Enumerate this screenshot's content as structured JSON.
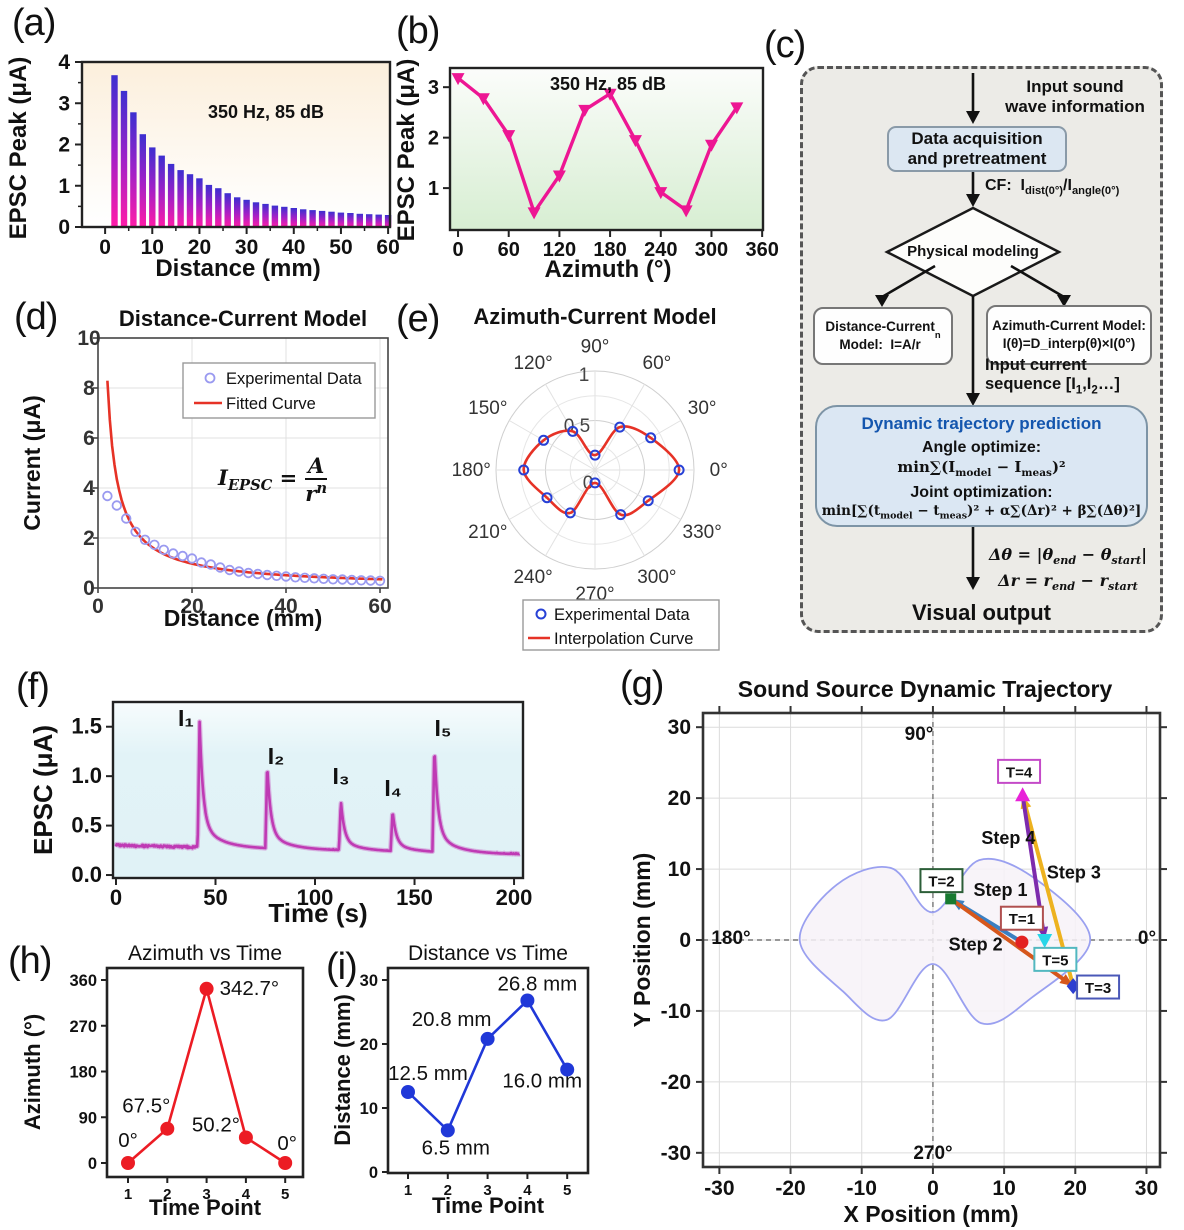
{
  "figure": {
    "panel_labels": {
      "a": "(a)",
      "b": "(b)",
      "c": "(c)",
      "d": "(d)",
      "e": "(e)",
      "f": "(f)",
      "g": "(g)",
      "h": "(h)",
      "i": "(i)"
    }
  },
  "colors": {
    "bar_top": "#3c2fd0",
    "bar_mid": "#9e21c8",
    "bar_bottom": "#ff1ca8",
    "panel_a_bg_top": "#fcefdc",
    "panel_b_bg_bottom": "#d7eed2",
    "panel_f_bg": "#e2f3f7",
    "magenta_line": "#ed1693",
    "orchid_trace": "#bf3ab4",
    "fit_red": "#e63226",
    "exp_circle_d": "#9a9af0",
    "exp_circle_e": "#2741d6",
    "h_red": "#ec1c24",
    "i_blue": "#2038d8",
    "lobe_stroke": "#9aa0f0",
    "lobe_fill": "#f7f2f8"
  },
  "flowchart": {
    "input_html": "Input sound<br>wave information",
    "acquisition_html": "Data acquisition<br>and pretreatment",
    "cf_html": "CF:&nbsp; I<sub>dist(0°)</sub>/I<sub>angle(0°)</sub>",
    "modeling": "Physical modeling",
    "dist_model_html": "Distance-Current<br>Model:&nbsp; I=A/r<sup>n</sup>",
    "azi_model_html": "Azimuth-Current Model:<br>I(θ)=D_interp(θ)×I(0°)",
    "sequence_html": "Input current<br>sequence [I<sub>1</sub>,I<sub>2</sub>…]",
    "dyn_title": "Dynamic trajectory prediction",
    "angle_opt": "Angle optimize:",
    "angle_formula_html": "min∑(I<sub>model</sub> − I<sub>meas</sub>)²",
    "joint_opt": "Joint optimization:",
    "joint_formula_html": "min[∑(t<sub>model</sub> − t<sub>meas</sub>)² + α∑(Δr)² + β∑(Δθ)²]",
    "delta_theta_html": "Δθ = |θ<sub>end</sub> − θ<sub>start</sub>|",
    "delta_r_html": "Δr = r<sub>end</sub> − r<sub>start</sub>",
    "output": "Visual output"
  },
  "panel_d_formula": {
    "lhs_html": "I<sub>EPSC</sub> =",
    "num_html": "A",
    "den_html": "r<sup>n</sup>"
  },
  "chart_data": [
    {
      "id": "a",
      "type": "bar",
      "title": "",
      "xlabel": "Distance (mm)",
      "ylabel": "EPSC Peak (μA)",
      "annotation": "350 Hz, 85 dB",
      "x": [
        2,
        4,
        6,
        8,
        10,
        12,
        14,
        16,
        18,
        20,
        22,
        24,
        26,
        28,
        30,
        32,
        34,
        36,
        38,
        40,
        42,
        44,
        46,
        48,
        50,
        52,
        54,
        56,
        58,
        60
      ],
      "values": [
        3.68,
        3.3,
        2.78,
        2.25,
        1.93,
        1.73,
        1.53,
        1.38,
        1.28,
        1.18,
        1.02,
        0.94,
        0.82,
        0.72,
        0.66,
        0.6,
        0.56,
        0.52,
        0.49,
        0.46,
        0.43,
        0.41,
        0.39,
        0.37,
        0.35,
        0.34,
        0.32,
        0.31,
        0.3,
        0.29
      ],
      "xticks": [
        0,
        10,
        20,
        30,
        40,
        50,
        60
      ],
      "yticks": [
        0,
        1,
        2,
        3,
        4
      ],
      "xlim": [
        -4.9,
        60.4
      ],
      "ylim": [
        0,
        4
      ]
    },
    {
      "id": "b",
      "type": "line",
      "xlabel": "Azimuth (°)",
      "ylabel": "EPSC Peak (μA)",
      "annotation": "350 Hz, 85 dB",
      "x": [
        0,
        30,
        60,
        90,
        120,
        150,
        180,
        210,
        240,
        270,
        300,
        330
      ],
      "values": [
        3.18,
        2.78,
        2.05,
        0.52,
        1.25,
        2.55,
        2.87,
        1.95,
        0.92,
        0.56,
        1.86,
        2.6
      ],
      "xticks": [
        0,
        60,
        120,
        180,
        240,
        300,
        360
      ],
      "yticks": [
        1,
        2,
        3
      ],
      "xlim": [
        -9.5,
        361
      ],
      "ylim": [
        0.17,
        3.38
      ]
    },
    {
      "id": "d",
      "type": "scatter",
      "title": "Distance-Current Model",
      "xlabel": "Distance (mm)",
      "ylabel": "Current (μA)",
      "legend": [
        "Experimental Data",
        "Fitted Curve"
      ],
      "scatter_x": [
        2,
        4,
        6,
        8,
        10,
        12,
        14,
        16,
        18,
        20,
        22,
        24,
        26,
        28,
        30,
        32,
        34,
        36,
        38,
        40,
        42,
        44,
        46,
        48,
        50,
        52,
        54,
        56,
        58,
        60
      ],
      "scatter_y": [
        3.68,
        3.3,
        2.78,
        2.25,
        1.93,
        1.73,
        1.53,
        1.38,
        1.28,
        1.18,
        1.02,
        0.94,
        0.82,
        0.72,
        0.66,
        0.6,
        0.56,
        0.52,
        0.49,
        0.46,
        0.43,
        0.41,
        0.39,
        0.37,
        0.35,
        0.34,
        0.32,
        0.31,
        0.3,
        0.29
      ],
      "fit": {
        "A": 15.8,
        "n": 0.93
      },
      "xticks": [
        0,
        20,
        40,
        60
      ],
      "yticks": [
        0,
        2,
        4,
        6,
        8,
        10
      ],
      "xlim": [
        0,
        61.7
      ],
      "ylim": [
        0,
        10
      ]
    },
    {
      "id": "e",
      "type": "polar",
      "title": "Azimuth-Current Model",
      "legend": [
        "Experimental Data",
        "Interpolation Curve"
      ],
      "theta_deg": [
        0,
        30,
        60,
        90,
        120,
        150,
        180,
        210,
        240,
        270,
        300,
        330
      ],
      "r": [
        0.85,
        0.65,
        0.5,
        0.15,
        0.45,
        0.6,
        0.72,
        0.56,
        0.5,
        0.13,
        0.52,
        0.62
      ],
      "rticks": [
        "0",
        "0.5",
        "1"
      ],
      "angle_labels": [
        "0°",
        "30°",
        "60°",
        "90°",
        "120°",
        "150°",
        "180°",
        "210°",
        "240°",
        "270°",
        "300°",
        "330°"
      ]
    },
    {
      "id": "f",
      "type": "line",
      "xlabel": "Time (s)",
      "ylabel": "EPSC (μA)",
      "baseline_start": 0.3,
      "baseline_end": 0.21,
      "spikes": [
        {
          "t": 42,
          "peak": 1.55,
          "label": "I₁"
        },
        {
          "t": 76,
          "peak": 1.12,
          "label": "I₂"
        },
        {
          "t": 113,
          "peak": 0.75,
          "label": "I₃"
        },
        {
          "t": 139,
          "peak": 0.65,
          "label": "I₄"
        },
        {
          "t": 160,
          "peak": 1.3,
          "label": "I₅"
        }
      ],
      "xticks": [
        0,
        50,
        100,
        150,
        200
      ],
      "yticks": [
        "0.0",
        "0.5",
        "1.0",
        "1.5"
      ],
      "xlim": [
        -1.5,
        204.5
      ],
      "ylim": [
        -0.03,
        1.75
      ]
    },
    {
      "id": "g",
      "type": "scatter",
      "title": "Sound Source Dynamic Trajectory",
      "xlabel": "X Position (mm)",
      "ylabel": "Y Position (mm)",
      "dir_labels": [
        "90°",
        "180°",
        "0°",
        "270°"
      ],
      "points": [
        {
          "label": "T=1",
          "x": 12.5,
          "y": -0.3,
          "marker": "circle",
          "color": "#e32222",
          "box_border": "#b05050",
          "box_x": 12.5,
          "box_y": 3.0
        },
        {
          "label": "T=2",
          "x": 2.5,
          "y": 5.8,
          "marker": "square",
          "color": "#177a30",
          "box_border": "#2c5e38",
          "box_x": 1.2,
          "box_y": 8.3
        },
        {
          "label": "T=3",
          "x": 19.7,
          "y": -6.5,
          "marker": "diamond",
          "color": "#2d3fd0",
          "box_border": "#4a58b8",
          "box_x": 23.2,
          "box_y": -6.7
        },
        {
          "label": "T=4",
          "x": 12.6,
          "y": 20.4,
          "marker": "triangle-up",
          "color": "#e822d8",
          "box_border": "#c44ac8",
          "box_x": 12.1,
          "box_y": 23.7
        },
        {
          "label": "T=5",
          "x": 15.7,
          "y": 0.0,
          "marker": "triangle-down",
          "color": "#28d6e8",
          "box_border": "#52b8c0",
          "box_x": 17.2,
          "box_y": -2.8
        }
      ],
      "steps": [
        {
          "label": "Step 1",
          "from": 0,
          "to": 1,
          "color": "#3a7fc2",
          "label_x": 9.5,
          "label_y": 6.2
        },
        {
          "label": "Step 2",
          "from": 1,
          "to": 2,
          "color": "#d6571c",
          "label_x": 6.0,
          "label_y": -1.5
        },
        {
          "label": "Step 3",
          "from": 2,
          "to": 3,
          "color": "#edb21f",
          "label_x": 19.8,
          "label_y": 8.7
        },
        {
          "label": "Step 4",
          "from": 3,
          "to": 4,
          "color": "#7d2bad",
          "label_x": 10.6,
          "label_y": 13.5
        }
      ],
      "lobe_scale": 26,
      "xticks": [
        -30,
        -20,
        -10,
        0,
        10,
        20,
        30
      ],
      "yticks": [
        -30,
        -20,
        -10,
        0,
        10,
        20,
        30
      ],
      "xlim": [
        -32.3,
        31.9
      ],
      "ylim": [
        -32,
        32
      ]
    },
    {
      "id": "h",
      "type": "line",
      "title": "Azimuth vs Time",
      "xlabel": "Time Point",
      "ylabel": "Azimuth (°)",
      "x": [
        1,
        2,
        3,
        4,
        5
      ],
      "values": [
        0,
        67.5,
        342.7,
        50.2,
        0
      ],
      "point_labels": [
        "0°",
        "67.5°",
        "342.7°",
        "50.2°",
        "0°"
      ],
      "xticks": [
        1,
        2,
        3,
        4,
        5
      ],
      "yticks": [
        0,
        90,
        180,
        270,
        360
      ]
    },
    {
      "id": "i",
      "type": "line",
      "title": "Distance vs Time",
      "xlabel": "Time Point",
      "ylabel": "Distance (mm)",
      "x": [
        1,
        2,
        3,
        4,
        5
      ],
      "values": [
        12.5,
        6.5,
        20.8,
        26.8,
        16.0
      ],
      "point_labels": [
        "12.5 mm",
        "6.5 mm",
        "20.8 mm",
        "26.8 mm",
        "16.0 mm"
      ],
      "xticks": [
        1,
        2,
        3,
        4,
        5
      ],
      "yticks": [
        0,
        10,
        20,
        30
      ]
    }
  ]
}
